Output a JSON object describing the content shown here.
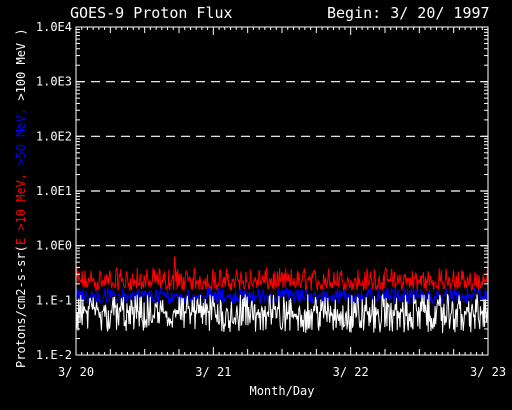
{
  "chart_data": {
    "type": "line",
    "title": "GOES-9 Proton Flux",
    "subtitle": "Begin: 3/ 20/ 1997",
    "xlabel": "Month/Day",
    "ylabel": {
      "prefix": "Protons/cm2-s-sr(",
      "parts": [
        {
          "text": "E >10 MeV,",
          "color": "#ff0000"
        },
        {
          "text": ">50 MeV,",
          "color": "#0000ff"
        },
        {
          "text": ">100 MeV )",
          "color": "#ffffff"
        }
      ]
    },
    "yscale": "log",
    "ylim": [
      0.01,
      10000
    ],
    "yticks": [
      {
        "value": 0.01,
        "label": "1.E-2"
      },
      {
        "value": 0.1,
        "label": "1.E-1"
      },
      {
        "value": 1,
        "label": "1.0E0"
      },
      {
        "value": 10,
        "label": "1.0E1"
      },
      {
        "value": 100,
        "label": "1.0E2"
      },
      {
        "value": 1000,
        "label": "1.0E3"
      },
      {
        "value": 10000,
        "label": "1.0E4"
      }
    ],
    "dashed_gridlines_at": [
      1,
      10,
      100,
      1000
    ],
    "xlim": [
      0,
      3
    ],
    "xticks": [
      {
        "value": 0,
        "label": "3/ 20"
      },
      {
        "value": 1,
        "label": "3/ 21"
      },
      {
        "value": 2,
        "label": "3/ 22"
      },
      {
        "value": 3,
        "label": "3/ 23"
      }
    ],
    "series": [
      {
        "name": "E >10 MeV",
        "color": "#ff0000",
        "typical": 0.22,
        "low": 0.15,
        "high": 0.4,
        "peak": {
          "x": 0.72,
          "value": 0.62
        }
      },
      {
        "name": ">50 MeV",
        "color": "#0000ff",
        "typical": 0.12,
        "low": 0.085,
        "high": 0.17
      },
      {
        "name": ">100 MeV",
        "color": "#ffffff",
        "typical": 0.06,
        "low": 0.025,
        "high": 0.13
      }
    ],
    "points_per_series": 600
  }
}
